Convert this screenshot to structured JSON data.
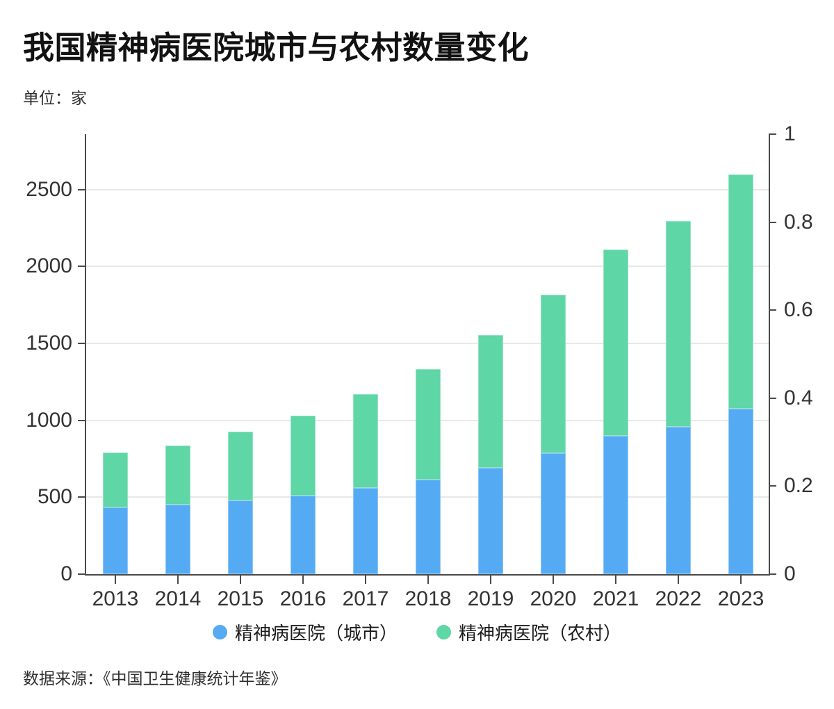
{
  "chart_data": {
    "type": "bar",
    "stacked": true,
    "title": "我国精神病医院城市与农村数量变化",
    "unit_label": "单位：家",
    "categories": [
      "2013",
      "2014",
      "2015",
      "2016",
      "2017",
      "2018",
      "2019",
      "2020",
      "2021",
      "2022",
      "2023"
    ],
    "series": [
      {
        "name": "精神病医院（城市）",
        "key": "city",
        "color": "#55aaf4",
        "values": [
          435,
          450,
          480,
          510,
          560,
          615,
          690,
          785,
          900,
          960,
          1075
        ]
      },
      {
        "name": "精神病医院（农村）",
        "key": "rural",
        "color": "#5ed6a6",
        "values": [
          355,
          385,
          445,
          520,
          610,
          720,
          865,
          1030,
          1210,
          1335,
          1525
        ]
      }
    ],
    "stack_totals": [
      790,
      835,
      925,
      1030,
      1170,
      1335,
      1555,
      1815,
      2110,
      2295,
      2600
    ],
    "left_axis": {
      "ticks": [
        0,
        500,
        1000,
        1500,
        2000,
        2500
      ],
      "range": [
        0,
        2860
      ]
    },
    "right_axis": {
      "tick_labels": [
        "0",
        "0.2",
        "0.4",
        "0.6",
        "0.8",
        "1"
      ],
      "range": [
        0,
        1
      ]
    },
    "grid": true,
    "legend_position": "bottom"
  },
  "footer": {
    "source": "数据来源：《中国卫生健康统计年鉴》"
  },
  "colors": {
    "city_bar": "#55aaf4",
    "rural_bar": "#5ed6a6",
    "axis": "#4a4a4a",
    "grid": "#e8e8e8",
    "title_text": "#121212",
    "axis_text": "#333333",
    "body_text": "#2f2f2f",
    "background": "#ffffff"
  }
}
